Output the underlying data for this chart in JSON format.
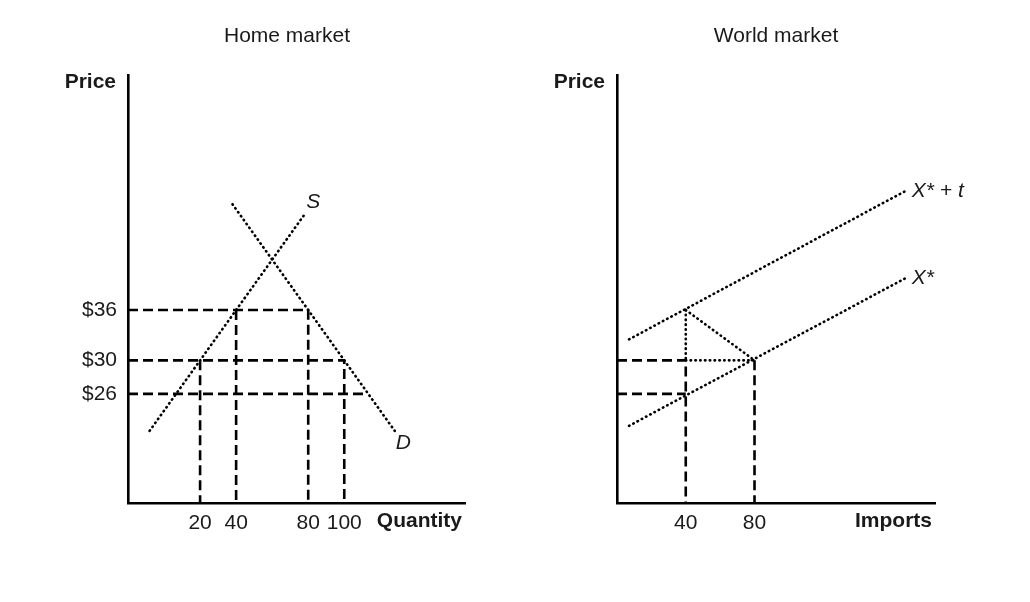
{
  "chart_data": [
    {
      "type": "line",
      "title": "Home market",
      "xlabel": "Quantity",
      "ylabel": "Price",
      "xlim": [
        -20,
        167
      ],
      "xticks": [
        20,
        40,
        80,
        100
      ],
      "ylim": [
        13,
        64
      ],
      "yticks": [
        {
          "value": 26,
          "label": "$26"
        },
        {
          "value": 30,
          "label": "$30"
        },
        {
          "value": 36,
          "label": "$36"
        }
      ],
      "line_style": "dotted",
      "series": [
        {
          "name": "S",
          "color": "#000000",
          "x": [
            -8,
            78
          ],
          "values": [
            21.6,
            47.4
          ]
        },
        {
          "name": "D",
          "color": "#000000",
          "x": [
            38,
            128
          ],
          "values": [
            48.6,
            21.6
          ]
        },
        {
          "color": "#000000",
          "line_style": "dashed",
          "x": [
            -20,
            80,
            80
          ],
          "values": [
            36,
            36,
            13
          ]
        },
        {
          "color": "#000000",
          "line_style": "dashed",
          "x": [
            40,
            40
          ],
          "values": [
            36,
            13
          ]
        },
        {
          "color": "#000000",
          "line_style": "dashed",
          "x": [
            -20,
            100,
            100
          ],
          "values": [
            30,
            30,
            13
          ]
        },
        {
          "color": "#000000",
          "line_style": "dashed",
          "x": [
            20,
            20
          ],
          "values": [
            30,
            13
          ]
        },
        {
          "color": "#000000",
          "line_style": "dashed",
          "x": [
            -20,
            113
          ],
          "values": [
            26,
            26
          ]
        }
      ]
    },
    {
      "type": "line",
      "title": "World market",
      "xlabel": "Imports",
      "ylabel": "Price",
      "xlim": [
        0,
        185
      ],
      "xticks": [
        40,
        80
      ],
      "ylim": [
        13,
        64
      ],
      "tick_labels": "x",
      "line_style": "dotted",
      "series": [
        {
          "name": "X* + t",
          "color": "#000000",
          "x": [
            7,
            168
          ],
          "values": [
            32.5,
            50.2
          ]
        },
        {
          "name": "X*",
          "color": "#000000",
          "x": [
            7,
            168
          ],
          "values": [
            22.2,
            39.8
          ]
        },
        {
          "color": "#000000",
          "x": [
            40,
            80
          ],
          "values": [
            36,
            30
          ]
        },
        {
          "color": "#000000",
          "x": [
            40,
            40
          ],
          "values": [
            36,
            30
          ]
        },
        {
          "color": "#000000",
          "x": [
            40,
            80
          ],
          "values": [
            30,
            30
          ]
        },
        {
          "color": "#000000",
          "line_style": "dashed",
          "x": [
            0,
            40,
            40
          ],
          "values": [
            30,
            30,
            13
          ]
        },
        {
          "color": "#000000",
          "line_style": "dashed",
          "x": [
            0,
            40
          ],
          "values": [
            26,
            26
          ]
        },
        {
          "color": "#000000",
          "line_style": "dashed",
          "x": [
            80,
            80
          ],
          "values": [
            30,
            13
          ]
        }
      ]
    }
  ]
}
